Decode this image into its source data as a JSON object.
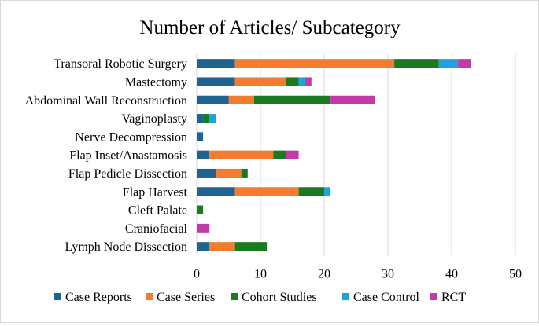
{
  "chart_data": {
    "type": "bar",
    "orientation": "horizontal",
    "stacked": true,
    "title": "Number of Articles/ Subcategory",
    "xlabel": "",
    "ylabel": "",
    "xlim": [
      0,
      50
    ],
    "xticks": [
      0,
      10,
      20,
      30,
      40,
      50
    ],
    "grid": true,
    "legend_position": "bottom",
    "categories": [
      "Transoral Robotic Surgery",
      "Mastectomy",
      "Abdominal Wall Reconstruction",
      "Vaginoplasty",
      "Nerve Decompression",
      "Flap Inset/Anastamosis",
      "Flap Pedicle Dissection",
      "Flap Harvest",
      "Cleft Palate",
      "Craniofacial",
      "Lymph Node Dissection"
    ],
    "series": [
      {
        "name": "Case Reports",
        "color": "#1f6391",
        "values": [
          6,
          6,
          5,
          1,
          1,
          2,
          3,
          6,
          0,
          0,
          2
        ]
      },
      {
        "name": "Case Series",
        "color": "#f47c30",
        "values": [
          25,
          8,
          4,
          0,
          0,
          10,
          4,
          10,
          0,
          0,
          4
        ]
      },
      {
        "name": "Cohort Studies",
        "color": "#1a7a1f",
        "values": [
          7,
          2,
          12,
          1,
          0,
          2,
          1,
          4,
          1,
          0,
          5
        ]
      },
      {
        "name": "Case Control",
        "color": "#1fa3dc",
        "values": [
          3,
          1,
          0,
          1,
          0,
          0,
          0,
          1,
          0,
          0,
          0
        ]
      },
      {
        "name": "RCT",
        "color": "#c23aa8",
        "values": [
          2,
          1,
          7,
          0,
          0,
          2,
          0,
          0,
          0,
          2,
          0
        ]
      }
    ]
  }
}
